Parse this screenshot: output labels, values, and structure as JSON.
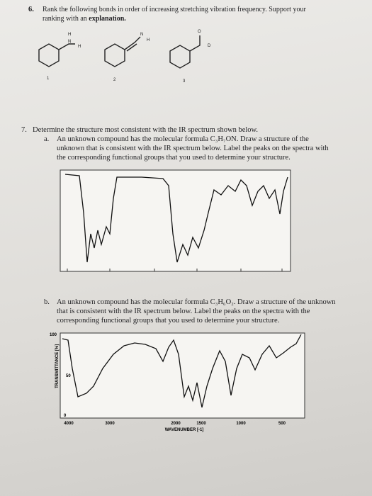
{
  "question6": {
    "number": "6.",
    "line1": "Rank the following bonds in order of increasing stretching vibration frequency.  Support your",
    "line2": "ranking with an",
    "line2_bold": "explanation.",
    "molecules": [
      {
        "atoms": [
          "H",
          "N",
          "H"
        ],
        "label": "1"
      },
      {
        "atoms": [
          "N",
          "H"
        ],
        "label": "2"
      },
      {
        "atoms": [
          "O",
          "D"
        ],
        "label": "3"
      }
    ]
  },
  "question7": {
    "number": "7.",
    "text": "Determine the structure most consistent with the IR spectrum shown below.",
    "part_a": {
      "letter": "a.",
      "lines": [
        "An unknown compound has the molecular formula C₃H₇ON. Draw a structure of the",
        "unknown that is consistent with the IR spectrum below. Label the peaks on the spectra with",
        "the corresponding functional groups that you used to determine your structure."
      ]
    },
    "part_b": {
      "letter": "b.",
      "lines": [
        "An unknown compound has the molecular formula C₃H₆O₂. Draw a structure of the unknown",
        "that is consistent with the IR spectrum below. Label the peaks on the spectra with the",
        "corresponding functional groups that you used to determine your structure."
      ],
      "spectrum": {
        "y_label": "TRANSMITTANCE [%]",
        "yticks": [
          "100",
          "50",
          "0"
        ],
        "xticks": [
          "4000",
          "3000",
          "2000",
          "1500",
          "1000",
          "500"
        ],
        "x_label": "WAVENUMBER [-1]"
      }
    }
  }
}
